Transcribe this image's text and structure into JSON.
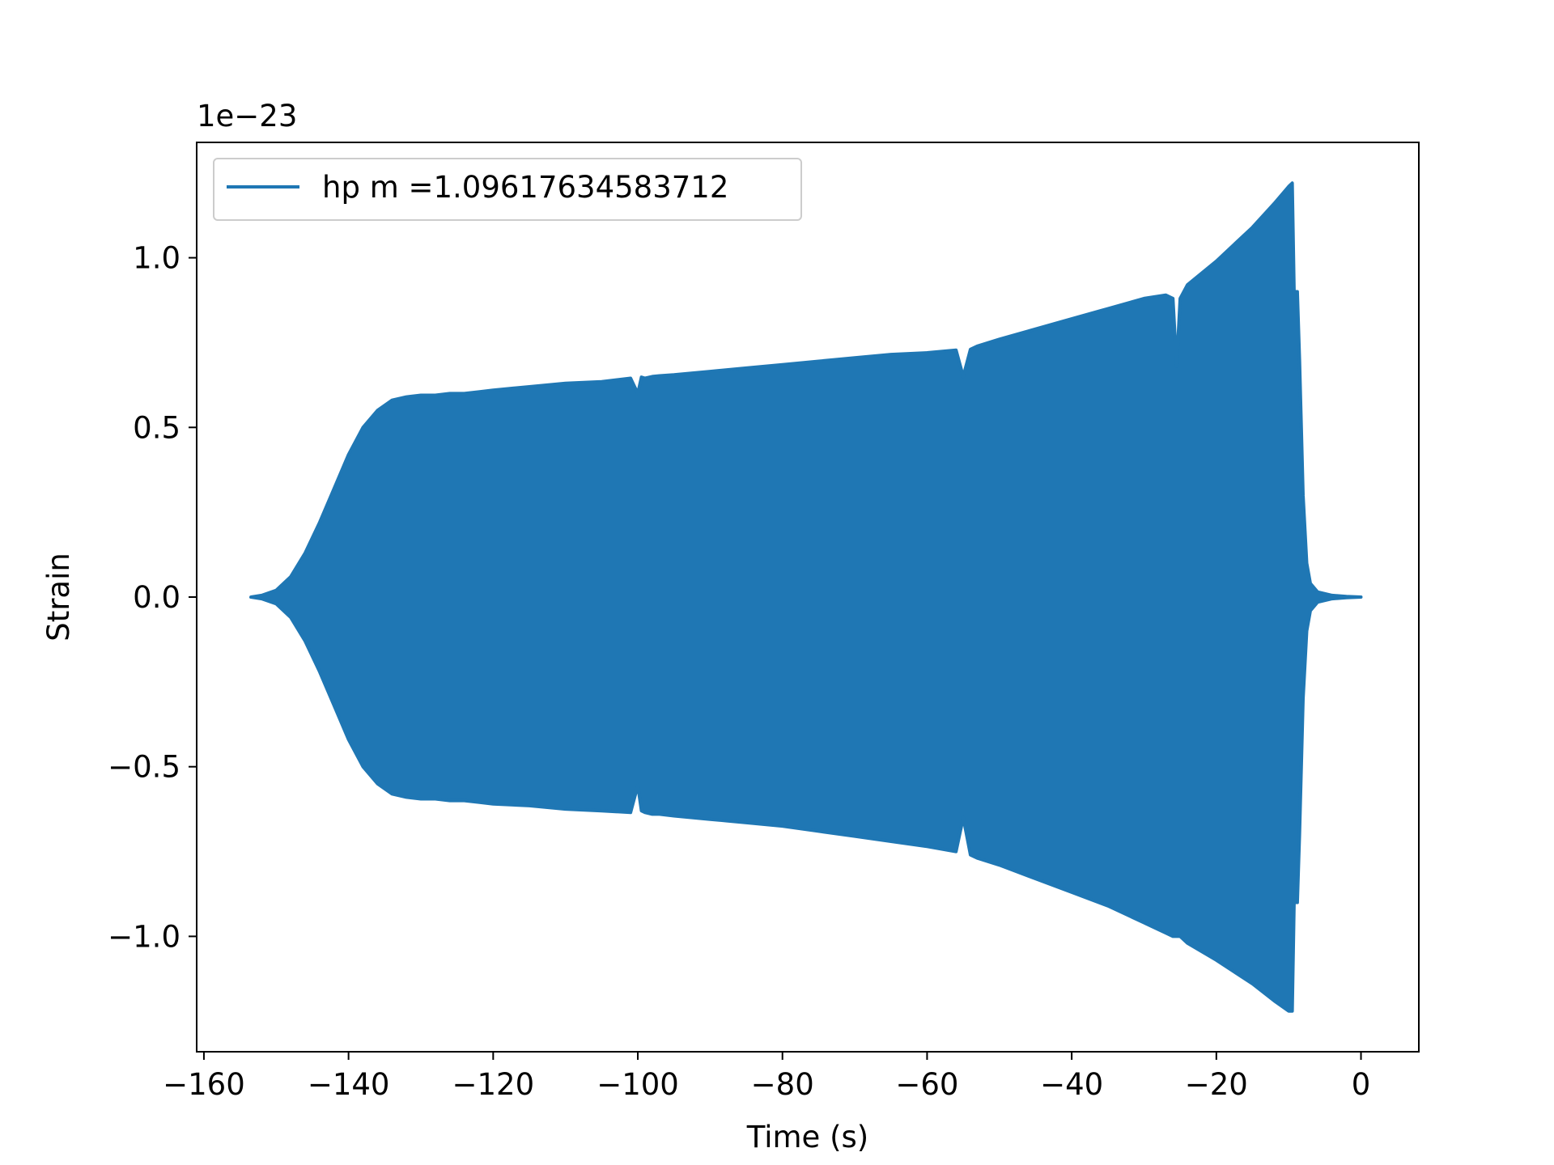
{
  "chart_data": {
    "type": "area",
    "description_of_series": "oscillating strain signal drawn as envelope",
    "xlabel": "Time (s)",
    "ylabel": "Strain",
    "y_offset_label": "1e−23",
    "xlim": [
      -161,
      8
    ],
    "ylim": [
      -1.34,
      1.34
    ],
    "x_ticks": [
      -160,
      -140,
      -120,
      -100,
      -80,
      -60,
      -40,
      -20,
      0
    ],
    "x_tick_labels": [
      "−160",
      "−140",
      "−120",
      "−100",
      "−80",
      "−60",
      "−40",
      "−20",
      "0"
    ],
    "y_ticks": [
      -1.0,
      -0.5,
      0.0,
      0.5,
      1.0
    ],
    "y_tick_labels": [
      "−1.0",
      "−0.5",
      "0.0",
      "0.5",
      "1.0"
    ],
    "grid": false,
    "legend_position": "top-left",
    "series": [
      {
        "name": "hp m =1.09617634583712",
        "color": "#1f77b4",
        "x": [
          -153.5,
          -152,
          -150,
          -148,
          -146,
          -144,
          -142,
          -140,
          -138,
          -136,
          -134,
          -132,
          -130,
          -128,
          -126,
          -124,
          -122,
          -120,
          -115,
          -110,
          -105,
          -101,
          -100,
          -99.5,
          -99,
          -98,
          -97,
          -95,
          -90,
          -85,
          -80,
          -75,
          -70,
          -65,
          -60,
          -56,
          -55,
          -54,
          -53,
          -50,
          -45,
          -40,
          -35,
          -30,
          -27,
          -26,
          -25.5,
          -25,
          -24,
          -20,
          -15,
          -12,
          -10,
          -9.5,
          -9.2,
          -9,
          -8.8,
          -8.5,
          -8,
          -7.5,
          -7,
          -6,
          -4,
          -2,
          0
        ],
        "upper": [
          0.0,
          0.005,
          0.02,
          0.06,
          0.13,
          0.22,
          0.32,
          0.42,
          0.5,
          0.55,
          0.58,
          0.59,
          0.595,
          0.595,
          0.6,
          0.6,
          0.605,
          0.61,
          0.62,
          0.63,
          0.635,
          0.645,
          0.6,
          0.648,
          0.645,
          0.65,
          0.652,
          0.655,
          0.665,
          0.675,
          0.685,
          0.695,
          0.705,
          0.715,
          0.72,
          0.728,
          0.65,
          0.73,
          0.74,
          0.76,
          0.79,
          0.82,
          0.85,
          0.88,
          0.89,
          0.88,
          0.68,
          0.88,
          0.92,
          0.99,
          1.09,
          1.16,
          1.21,
          1.22,
          0.85,
          0.9,
          0.9,
          0.7,
          0.3,
          0.1,
          0.04,
          0.015,
          0.005,
          0.002,
          0.0
        ],
        "lower": [
          0.0,
          -0.005,
          -0.02,
          -0.06,
          -0.13,
          -0.22,
          -0.32,
          -0.42,
          -0.5,
          -0.55,
          -0.58,
          -0.59,
          -0.595,
          -0.595,
          -0.6,
          -0.6,
          -0.605,
          -0.61,
          -0.615,
          -0.625,
          -0.63,
          -0.635,
          -0.555,
          -0.63,
          -0.635,
          -0.64,
          -0.64,
          -0.645,
          -0.655,
          -0.665,
          -0.675,
          -0.69,
          -0.705,
          -0.72,
          -0.735,
          -0.75,
          -0.65,
          -0.76,
          -0.77,
          -0.79,
          -0.83,
          -0.87,
          -0.91,
          -0.96,
          -0.99,
          -1.0,
          -1.0,
          -1.0,
          -1.02,
          -1.07,
          -1.14,
          -1.19,
          -1.22,
          -1.22,
          -0.85,
          -0.9,
          -0.9,
          -0.7,
          -0.3,
          -0.1,
          -0.04,
          -0.015,
          -0.005,
          -0.002,
          0.0
        ]
      }
    ]
  }
}
